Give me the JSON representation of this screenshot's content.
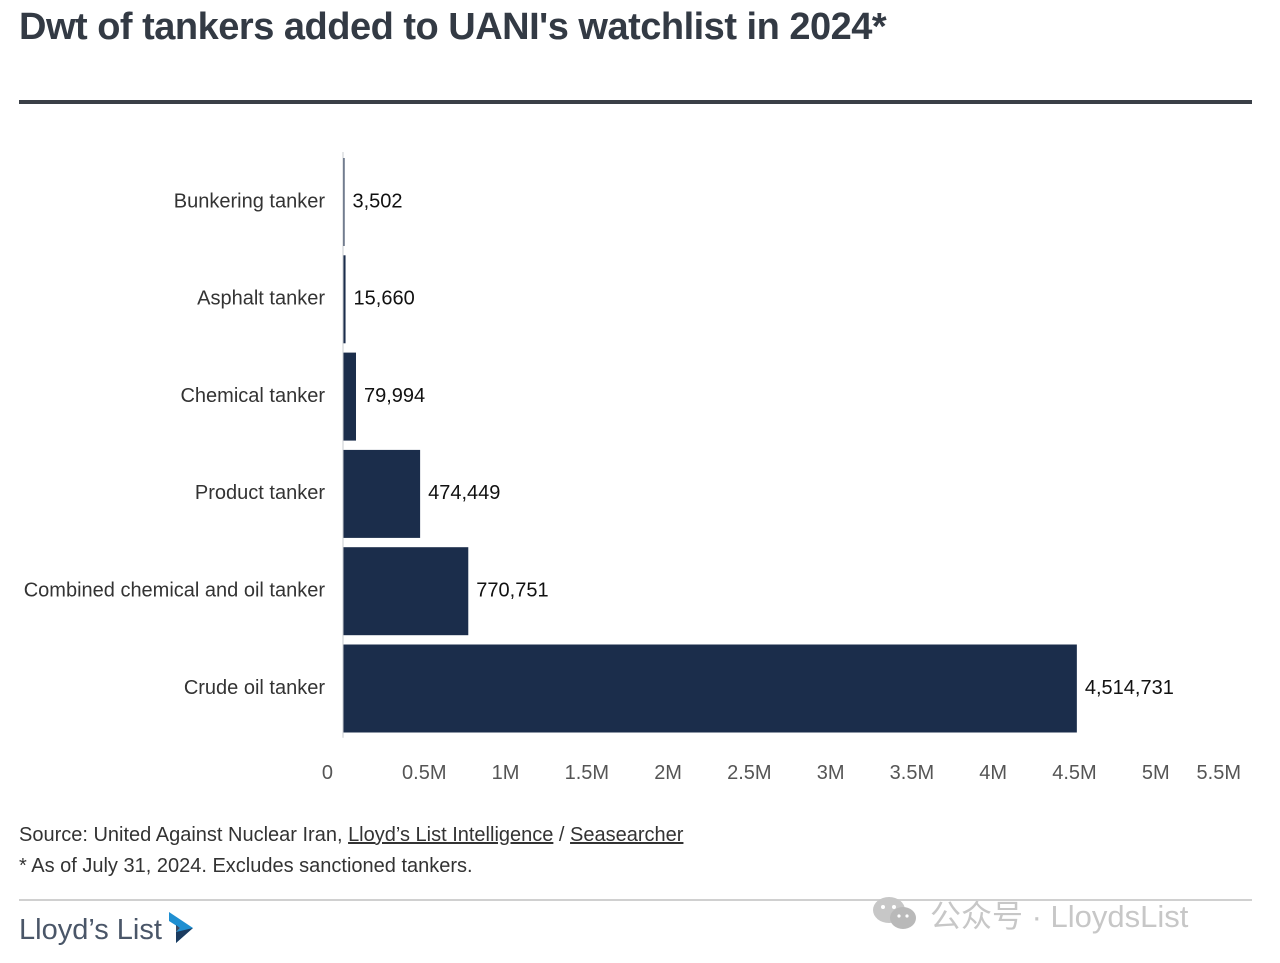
{
  "header": {
    "title": "Dwt of tankers added to UANI's watchlist in 2024*"
  },
  "chart_data": {
    "type": "bar",
    "orientation": "horizontal",
    "categories": [
      "Bunkering tanker",
      "Asphalt tanker",
      "Chemical tanker",
      "Product tanker",
      "Combined chemical and oil tanker",
      "Crude oil tanker"
    ],
    "values": [
      3502,
      15660,
      79994,
      474449,
      770751,
      4514731
    ],
    "value_labels": [
      "3,502",
      "15,660",
      "79,994",
      "474,449",
      "770,751",
      "4,514,731"
    ],
    "x_ticks": [
      {
        "value": 0,
        "label": "0"
      },
      {
        "value": 500000,
        "label": "0.5M"
      },
      {
        "value": 1000000,
        "label": "1M"
      },
      {
        "value": 1500000,
        "label": "1.5M"
      },
      {
        "value": 2000000,
        "label": "2M"
      },
      {
        "value": 2500000,
        "label": "2.5M"
      },
      {
        "value": 3000000,
        "label": "3M"
      },
      {
        "value": 3500000,
        "label": "3.5M"
      },
      {
        "value": 4000000,
        "label": "4M"
      },
      {
        "value": 4500000,
        "label": "4.5M"
      },
      {
        "value": 5000000,
        "label": "5M"
      },
      {
        "value": 5500000,
        "label": "5.5M"
      }
    ],
    "xlim": [
      0,
      5500000
    ],
    "grid": false,
    "legend": "none",
    "bar_color": "#1b2d4b"
  },
  "footer": {
    "source_prefix": "Source: United Against Nuclear Iran, ",
    "source_link1": "Lloyd’s List Intelligence",
    "source_sep": " / ",
    "source_link2": "Seasearcher",
    "note": "* As of July 31, 2024. Excludes sanctioned tankers.",
    "brand": "Lloyd’s List",
    "watermark": "公众号 · LloydsList"
  },
  "colors": {
    "bar": "#1b2d4b",
    "title": "#333a44",
    "brand_arrow_outer": "#1f8fd1",
    "brand_arrow_inner": "#1b2d4b"
  },
  "icons": {
    "brand_logo": "lloyds-list-arrow-icon",
    "watermark_logo": "wechat-icon"
  }
}
